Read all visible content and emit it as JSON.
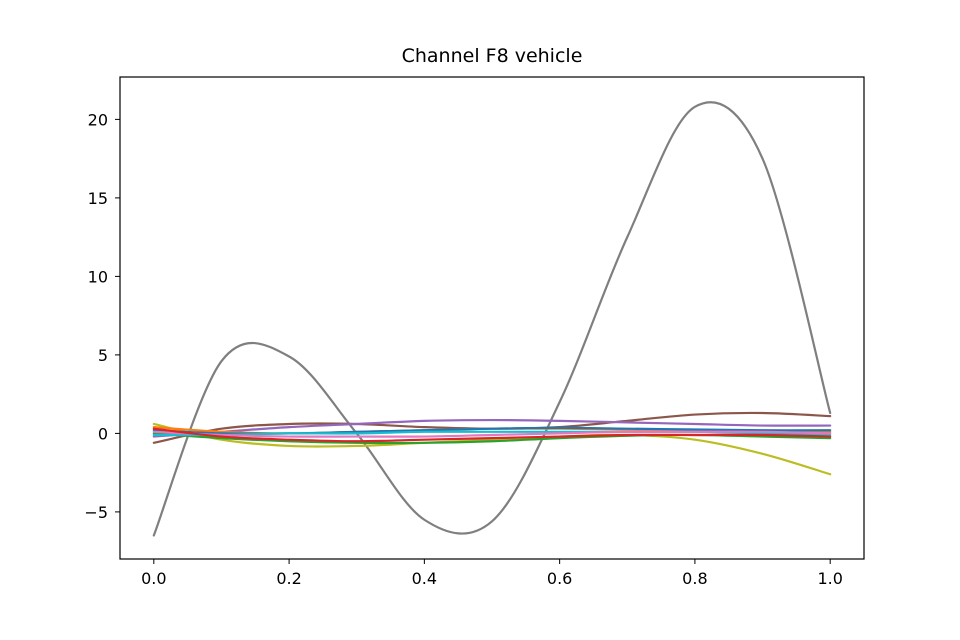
{
  "chart_data": {
    "type": "line",
    "title": "Channel F8 vehicle",
    "xlabel": "",
    "ylabel": "",
    "xlim": [
      -0.05,
      1.05
    ],
    "ylim": [
      -8,
      22.7
    ],
    "xticks": [
      0.0,
      0.2,
      0.4,
      0.6,
      0.8,
      1.0
    ],
    "xtick_labels": [
      "0.0",
      "0.2",
      "0.4",
      "0.6",
      "0.8",
      "1.0"
    ],
    "yticks": [
      -5,
      0,
      5,
      10,
      15,
      20
    ],
    "ytick_labels": [
      "−5",
      "0",
      "5",
      "10",
      "15",
      "20"
    ],
    "grid": false,
    "legend": "none",
    "x": [
      0.0,
      0.1,
      0.2,
      0.3,
      0.4,
      0.5,
      0.6,
      0.7,
      0.8,
      0.9,
      1.0
    ],
    "series": [
      {
        "color": "#7f7f7f",
        "values": [
          -6.5,
          4.6,
          4.9,
          0.0,
          -5.5,
          -5.6,
          2.0,
          12.5,
          20.8,
          17.5,
          1.3
        ]
      },
      {
        "color": "#8c564b",
        "values": [
          -0.6,
          0.3,
          0.6,
          0.6,
          0.4,
          0.3,
          0.4,
          0.8,
          1.2,
          1.3,
          1.1
        ]
      },
      {
        "color": "#9467bd",
        "values": [
          -0.2,
          0.1,
          0.4,
          0.6,
          0.8,
          0.85,
          0.8,
          0.7,
          0.6,
          0.5,
          0.5
        ]
      },
      {
        "color": "#bcbd22",
        "values": [
          0.6,
          -0.4,
          -0.8,
          -0.8,
          -0.6,
          -0.4,
          -0.2,
          -0.1,
          -0.4,
          -1.3,
          -2.6
        ]
      },
      {
        "color": "#2ca02c",
        "values": [
          0.0,
          -0.3,
          -0.5,
          -0.6,
          -0.6,
          -0.5,
          -0.3,
          -0.15,
          -0.1,
          -0.2,
          -0.3
        ]
      },
      {
        "color": "#ff7f0e",
        "values": [
          0.4,
          0.1,
          0.0,
          0.1,
          0.2,
          0.3,
          0.3,
          0.25,
          0.2,
          0.15,
          0.1
        ]
      },
      {
        "color": "#1f77b4",
        "values": [
          0.2,
          0.0,
          0.0,
          0.1,
          0.2,
          0.3,
          0.35,
          0.3,
          0.25,
          0.2,
          0.2
        ]
      },
      {
        "color": "#17becf",
        "values": [
          -0.1,
          -0.1,
          0.0,
          0.0,
          0.1,
          0.1,
          0.1,
          0.1,
          0.1,
          0.0,
          -0.1
        ]
      },
      {
        "color": "#e377c2",
        "values": [
          0.1,
          -0.1,
          -0.2,
          -0.2,
          -0.2,
          -0.1,
          0.0,
          0.1,
          0.1,
          0.1,
          0.0
        ]
      },
      {
        "color": "#d62728",
        "values": [
          0.3,
          -0.2,
          -0.4,
          -0.5,
          -0.4,
          -0.3,
          -0.2,
          -0.1,
          -0.1,
          -0.1,
          -0.2
        ]
      }
    ]
  }
}
